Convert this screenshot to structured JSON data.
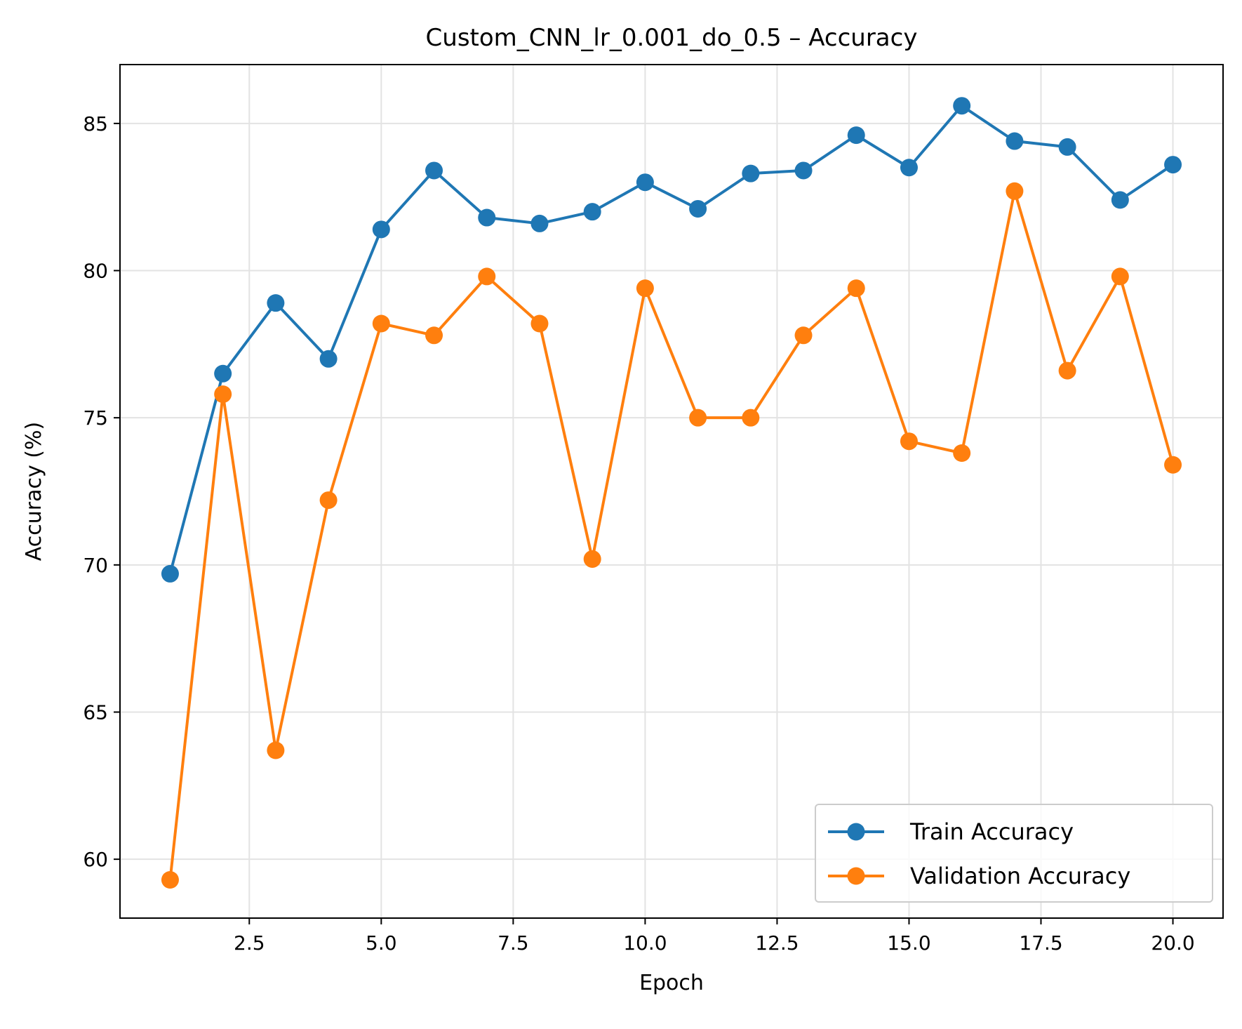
{
  "chart_data": {
    "type": "line",
    "title": "Custom_CNN_lr_0.001_do_0.5 – Accuracy",
    "xlabel": "Epoch",
    "ylabel": "Accuracy (%)",
    "xlim": [
      0.05,
      20.95
    ],
    "ylim": [
      58.0,
      87.0
    ],
    "xticks": [
      2.5,
      5.0,
      7.5,
      10.0,
      12.5,
      15.0,
      17.5,
      20.0
    ],
    "xtick_labels": [
      "2.5",
      "5.0",
      "7.5",
      "10.0",
      "12.5",
      "15.0",
      "17.5",
      "20.0"
    ],
    "yticks": [
      60,
      65,
      70,
      75,
      80,
      85
    ],
    "ytick_labels": [
      "60",
      "65",
      "70",
      "75",
      "80",
      "85"
    ],
    "grid": true,
    "legend_position": "lower-right",
    "x": [
      1,
      2,
      3,
      4,
      5,
      6,
      7,
      8,
      9,
      10,
      11,
      12,
      13,
      14,
      15,
      16,
      17,
      18,
      19,
      20
    ],
    "series": [
      {
        "name": "Train Accuracy",
        "color": "#1f77b4",
        "values": [
          69.7,
          76.5,
          78.9,
          77.0,
          81.4,
          83.4,
          81.8,
          81.6,
          82.0,
          83.0,
          82.1,
          83.3,
          83.4,
          84.6,
          83.5,
          85.6,
          84.4,
          84.2,
          82.4,
          83.6
        ]
      },
      {
        "name": "Validation Accuracy",
        "color": "#ff7f0e",
        "values": [
          59.3,
          75.8,
          63.7,
          72.2,
          78.2,
          77.8,
          79.8,
          78.2,
          70.2,
          79.4,
          75.0,
          75.0,
          77.8,
          79.4,
          74.2,
          73.8,
          82.7,
          76.6,
          79.8,
          73.4
        ]
      }
    ]
  }
}
